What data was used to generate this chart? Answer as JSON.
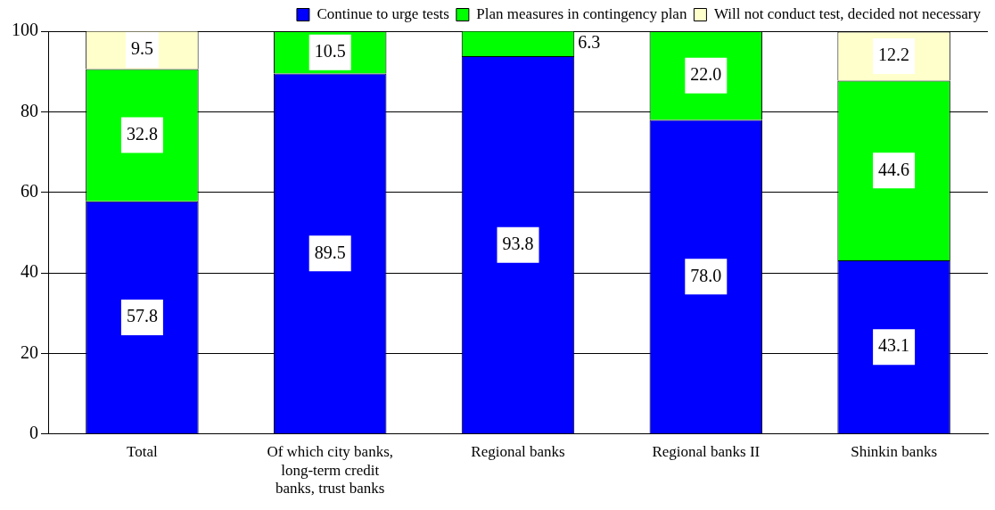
{
  "chart_data": {
    "type": "bar",
    "stacked": true,
    "categories": [
      "Total",
      "Of which city banks, long-term credit banks, trust banks",
      "Regional banks",
      "Regional banks II",
      "Shinkin banks"
    ],
    "series": [
      {
        "name": "Continue to urge tests",
        "color": "#0000ff",
        "values": [
          57.8,
          89.5,
          93.8,
          78.0,
          43.1
        ],
        "value_labels": [
          "57.8",
          "89.5",
          "93.8",
          "78.0",
          "43.1"
        ]
      },
      {
        "name": "Plan measures in contingency plan",
        "color": "#00ff00",
        "values": [
          32.8,
          10.5,
          6.3,
          22.0,
          44.6
        ],
        "value_labels": [
          "32.8",
          "10.5",
          "6.3",
          "22.0",
          "44.6"
        ]
      },
      {
        "name": "Will not conduct test, decided not necessary",
        "color": "#ffffcc",
        "values": [
          9.5,
          null,
          null,
          null,
          12.2
        ],
        "value_labels": [
          "9.5",
          null,
          null,
          null,
          "12.2"
        ]
      }
    ],
    "ylim": [
      0,
      100
    ],
    "yticks": [
      0,
      20,
      40,
      60,
      80,
      100
    ],
    "grid": "y",
    "legend": "top"
  }
}
